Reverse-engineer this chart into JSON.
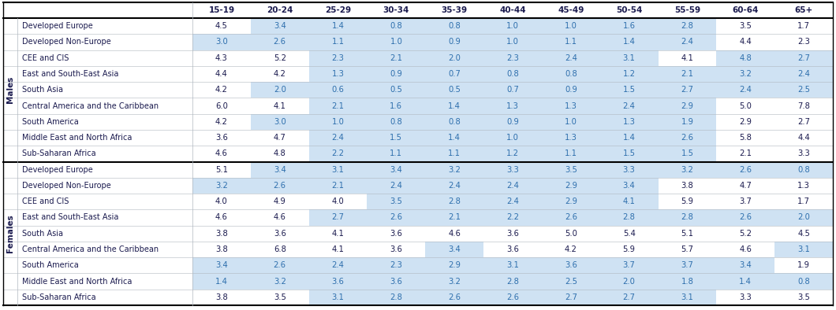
{
  "col_headers": [
    "15-19",
    "20-24",
    "25-29",
    "30-34",
    "35-39",
    "40-44",
    "45-49",
    "50-54",
    "55-59",
    "60-64",
    "65+"
  ],
  "row_groups": [
    {
      "group_label": "Males",
      "rows": [
        {
          "label": "Developed Europe",
          "values": [
            4.5,
            3.4,
            1.4,
            0.8,
            0.8,
            1.0,
            1.0,
            1.6,
            2.8,
            3.5,
            1.7
          ],
          "blue_cols": [
            1,
            2,
            3,
            4,
            5,
            6,
            7,
            8
          ]
        },
        {
          "label": "Developed Non-Europe",
          "values": [
            3.0,
            2.6,
            1.1,
            1.0,
            0.9,
            1.0,
            1.1,
            1.4,
            2.4,
            4.4,
            2.3
          ],
          "blue_cols": [
            0,
            1,
            2,
            3,
            4,
            5,
            6,
            7,
            8
          ]
        },
        {
          "label": "CEE and CIS",
          "values": [
            4.3,
            5.2,
            2.3,
            2.1,
            2.0,
            2.3,
            2.4,
            3.1,
            4.1,
            4.8,
            2.7
          ],
          "blue_cols": [
            2,
            3,
            4,
            5,
            6,
            7,
            9,
            10
          ]
        },
        {
          "label": "East and South-East Asia",
          "values": [
            4.4,
            4.2,
            1.3,
            0.9,
            0.7,
            0.8,
            0.8,
            1.2,
            2.1,
            3.2,
            2.4
          ],
          "blue_cols": [
            2,
            3,
            4,
            5,
            6,
            7,
            8,
            9,
            10
          ]
        },
        {
          "label": "South Asia",
          "values": [
            4.2,
            2.0,
            0.6,
            0.5,
            0.5,
            0.7,
            0.9,
            1.5,
            2.7,
            2.4,
            2.5
          ],
          "blue_cols": [
            1,
            2,
            3,
            4,
            5,
            6,
            7,
            8,
            9,
            10
          ]
        },
        {
          "label": "Central America and the Caribbean",
          "values": [
            6.0,
            4.1,
            2.1,
            1.6,
            1.4,
            1.3,
            1.3,
            2.4,
            2.9,
            5.0,
            7.8
          ],
          "blue_cols": [
            2,
            3,
            4,
            5,
            6,
            7,
            8
          ]
        },
        {
          "label": "South America",
          "values": [
            4.2,
            3.0,
            1.0,
            0.8,
            0.8,
            0.9,
            1.0,
            1.3,
            1.9,
            2.9,
            2.7
          ],
          "blue_cols": [
            1,
            2,
            3,
            4,
            5,
            6,
            7,
            8
          ]
        },
        {
          "label": "Middle East and North Africa",
          "values": [
            3.6,
            4.7,
            2.4,
            1.5,
            1.4,
            1.0,
            1.3,
            1.4,
            2.6,
            5.8,
            4.4
          ],
          "blue_cols": [
            2,
            3,
            4,
            5,
            6,
            7,
            8
          ]
        },
        {
          "label": "Sub-Saharan Africa",
          "values": [
            4.6,
            4.8,
            2.2,
            1.1,
            1.1,
            1.2,
            1.1,
            1.5,
            1.5,
            2.1,
            3.3
          ],
          "blue_cols": [
            2,
            3,
            4,
            5,
            6,
            7,
            8
          ]
        }
      ]
    },
    {
      "group_label": "Females",
      "rows": [
        {
          "label": "Developed Europe",
          "values": [
            5.1,
            3.4,
            3.1,
            3.4,
            3.2,
            3.3,
            3.5,
            3.3,
            3.2,
            2.6,
            0.8
          ],
          "blue_cols": [
            1,
            2,
            3,
            4,
            5,
            6,
            7,
            8,
            9,
            10
          ]
        },
        {
          "label": "Developed Non-Europe",
          "values": [
            3.2,
            2.6,
            2.1,
            2.4,
            2.4,
            2.4,
            2.9,
            3.4,
            3.8,
            4.7,
            1.3
          ],
          "blue_cols": [
            0,
            1,
            2,
            3,
            4,
            5,
            6,
            7
          ]
        },
        {
          "label": "CEE and CIS",
          "values": [
            4.0,
            4.9,
            4.0,
            3.5,
            2.8,
            2.4,
            2.9,
            4.1,
            5.9,
            3.7,
            1.7
          ],
          "blue_cols": [
            3,
            4,
            5,
            6,
            7
          ]
        },
        {
          "label": "East and South-East Asia",
          "values": [
            4.6,
            4.6,
            2.7,
            2.6,
            2.1,
            2.2,
            2.6,
            2.8,
            2.8,
            2.6,
            2.0
          ],
          "blue_cols": [
            2,
            3,
            4,
            5,
            6,
            7,
            8,
            9,
            10
          ]
        },
        {
          "label": "South Asia",
          "values": [
            3.8,
            3.6,
            4.1,
            3.6,
            4.6,
            3.6,
            5.0,
            5.4,
            5.1,
            5.2,
            4.5
          ],
          "blue_cols": []
        },
        {
          "label": "Central America and the Caribbean",
          "values": [
            3.8,
            6.8,
            4.1,
            3.6,
            3.4,
            3.6,
            4.2,
            5.9,
            5.7,
            4.6,
            3.1
          ],
          "blue_cols": [
            4,
            10
          ]
        },
        {
          "label": "South America",
          "values": [
            3.4,
            2.6,
            2.4,
            2.3,
            2.9,
            3.1,
            3.6,
            3.7,
            3.7,
            3.4,
            1.9
          ],
          "blue_cols": [
            0,
            1,
            2,
            3,
            4,
            5,
            6,
            7,
            8,
            9
          ]
        },
        {
          "label": "Middle East and North Africa",
          "values": [
            1.4,
            3.2,
            3.6,
            3.6,
            3.2,
            2.8,
            2.5,
            2.0,
            1.8,
            1.4,
            0.8
          ],
          "blue_cols": [
            0,
            1,
            2,
            3,
            4,
            5,
            6,
            7,
            8,
            9,
            10
          ]
        },
        {
          "label": "Sub-Saharan Africa",
          "values": [
            3.8,
            3.5,
            3.1,
            2.8,
            2.6,
            2.6,
            2.7,
            2.7,
            3.1,
            3.3,
            3.5
          ],
          "blue_cols": [
            2,
            3,
            4,
            5,
            6,
            7,
            8
          ]
        }
      ]
    }
  ],
  "blue_color": "#cfe2f3",
  "white_color": "#ffffff",
  "text_color_blue": "#2e6fad",
  "text_color_dark": "#1a1a4e",
  "sep_line_color": "#000000",
  "thin_line_color": "#b0b8c0"
}
